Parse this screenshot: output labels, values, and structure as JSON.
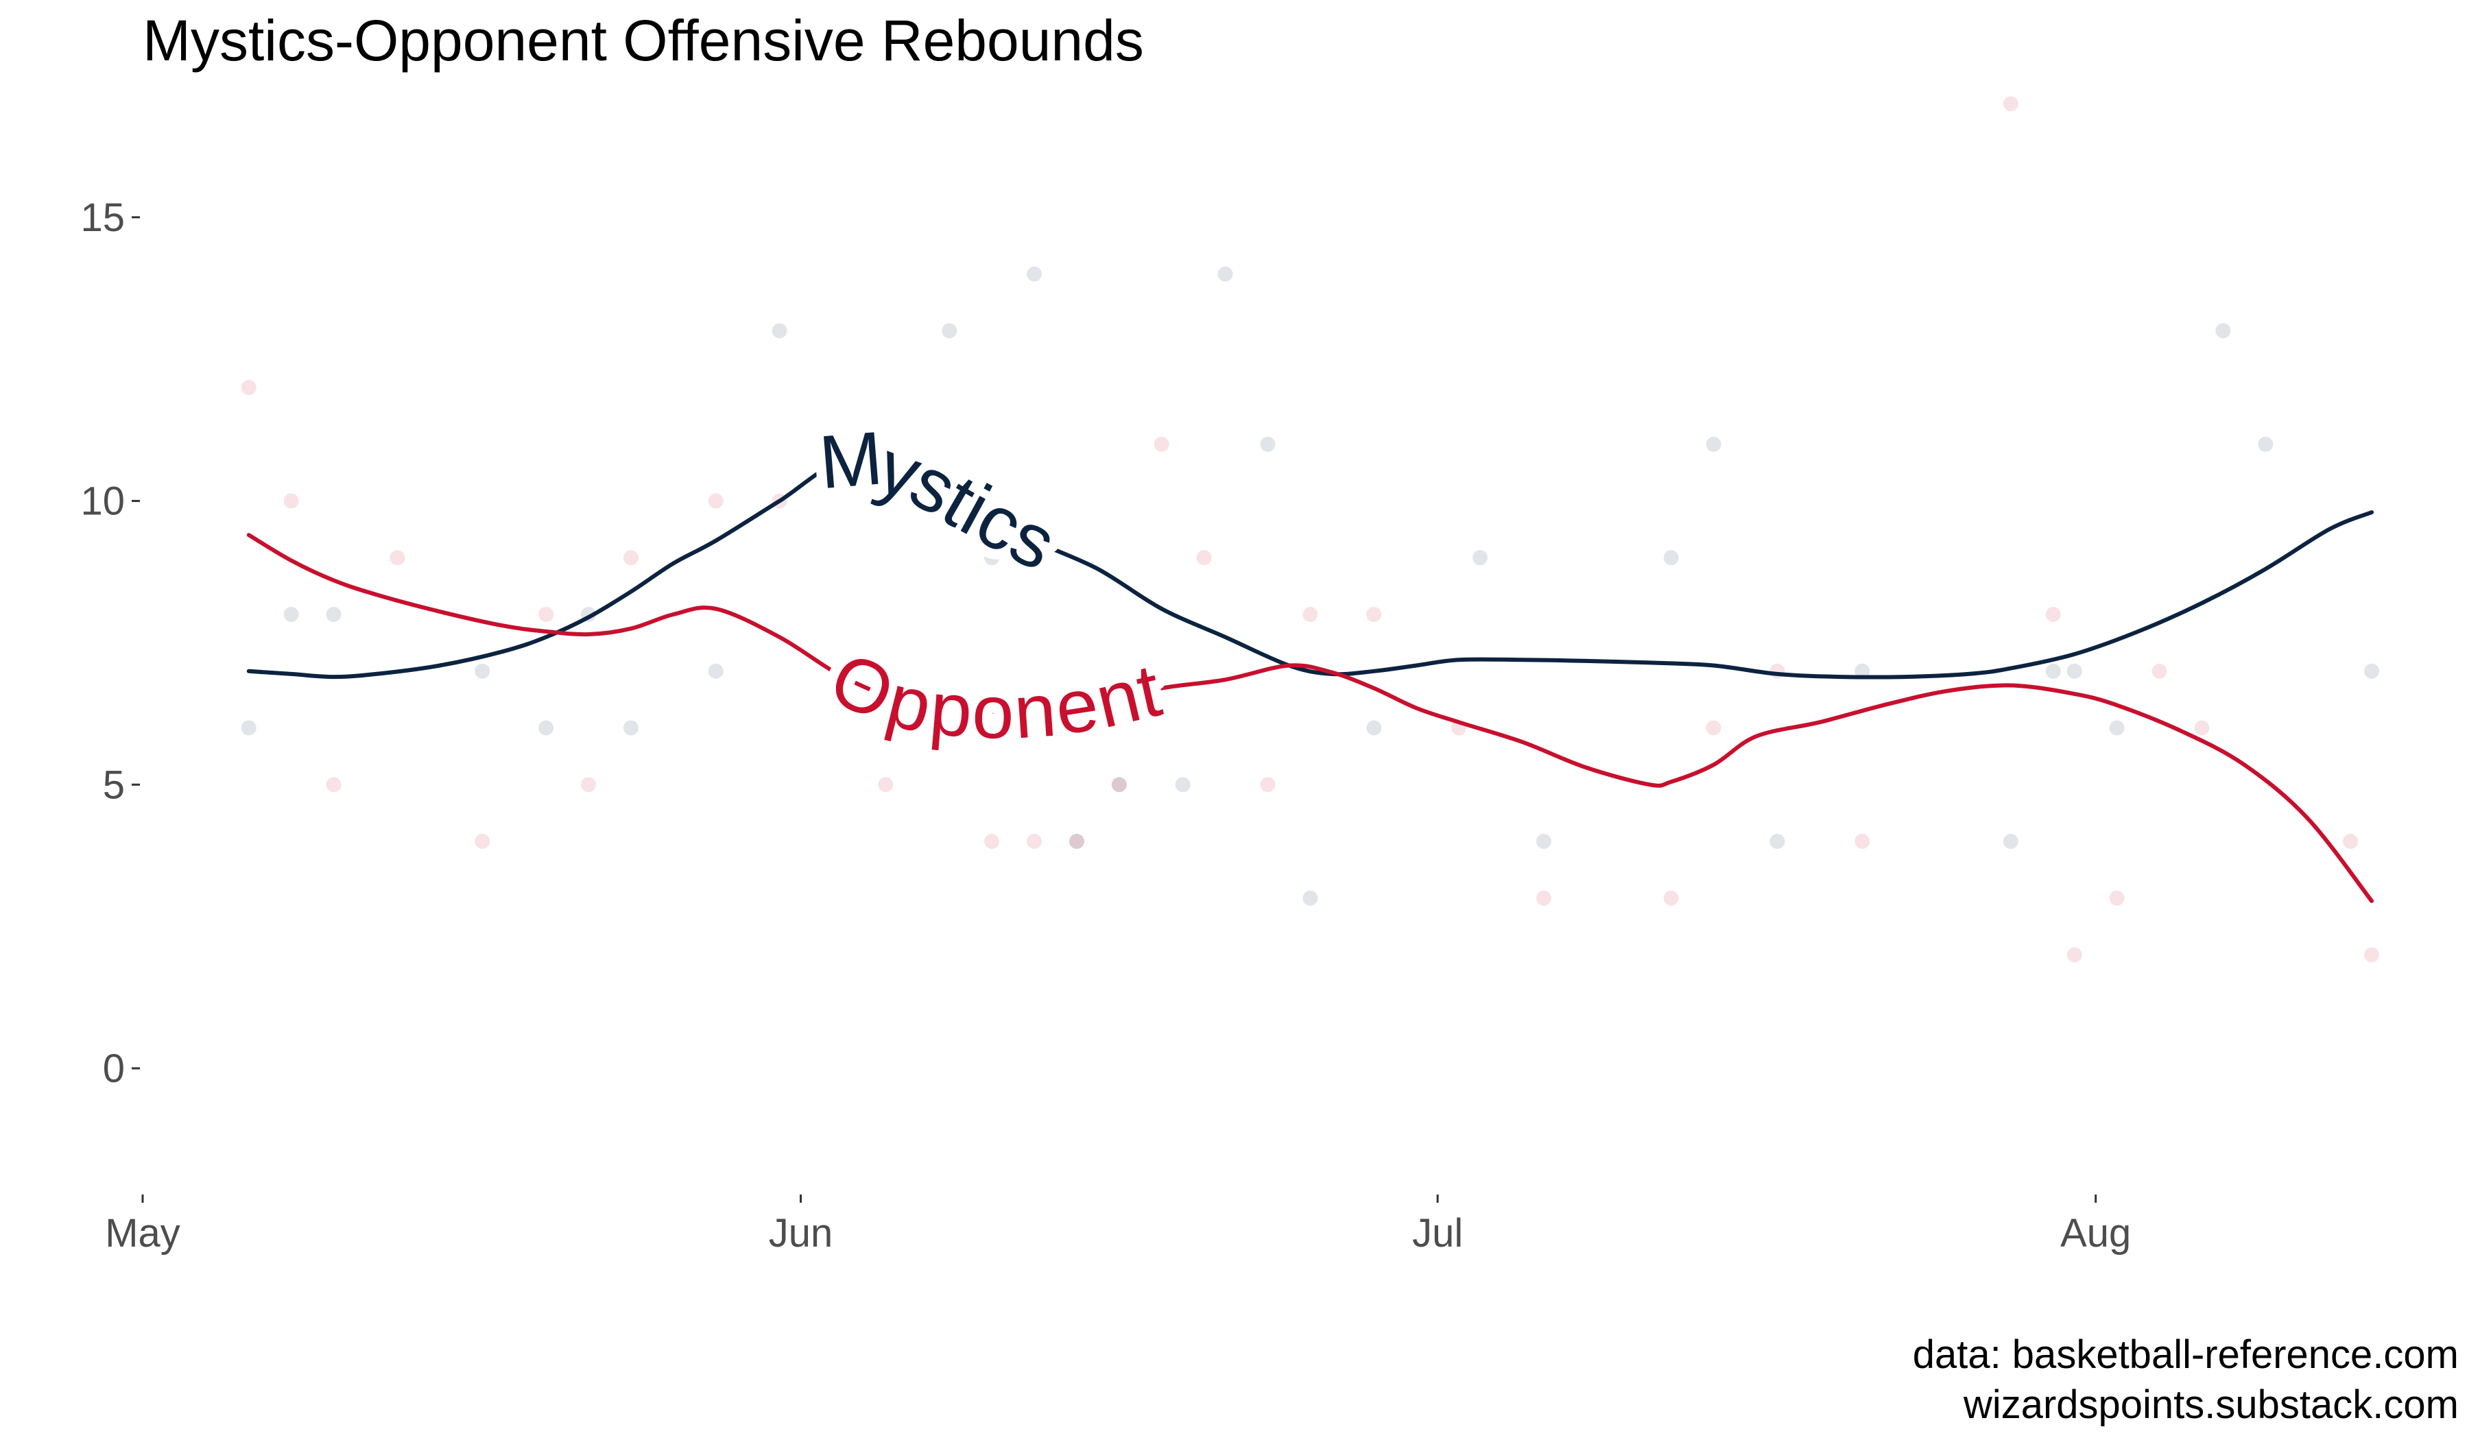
{
  "chart_data": {
    "type": "line",
    "title": "Mystics-Opponent Offensive Rebounds",
    "xlabel": "",
    "ylabel": "",
    "ylim": [
      -2.2,
      17.5
    ],
    "xlim_days": [
      0,
      107
    ],
    "grid": false,
    "legend": "direct labels on curves",
    "y_ticks": [
      0,
      5,
      10,
      15
    ],
    "y_tick_labels": [
      "0",
      "5",
      "10",
      "15"
    ],
    "x_ticks": [
      {
        "label": "May",
        "day": 0
      },
      {
        "label": "Jun",
        "day": 31
      },
      {
        "label": "Jul",
        "day": 61
      },
      {
        "label": "Aug",
        "day": 92
      }
    ],
    "series": [
      {
        "name": "Mystics",
        "color": "#0c2340",
        "label_text": "Mystics",
        "smooth": [
          [
            5,
            7.0
          ],
          [
            7,
            6.95
          ],
          [
            9,
            6.9
          ],
          [
            11,
            6.95
          ],
          [
            14,
            7.1
          ],
          [
            17,
            7.35
          ],
          [
            19,
            7.6
          ],
          [
            21,
            7.95
          ],
          [
            23,
            8.4
          ],
          [
            25,
            8.9
          ],
          [
            27,
            9.3
          ],
          [
            30,
            10.0
          ],
          [
            33,
            10.7
          ],
          [
            36,
            10.5
          ],
          [
            39,
            9.9
          ],
          [
            42,
            9.3
          ],
          [
            45,
            8.8
          ],
          [
            48,
            8.1
          ],
          [
            51,
            7.6
          ],
          [
            54,
            7.1
          ],
          [
            56,
            6.95
          ],
          [
            58,
            7.0
          ],
          [
            60,
            7.1
          ],
          [
            62,
            7.2
          ],
          [
            65,
            7.2
          ],
          [
            68,
            7.18
          ],
          [
            71,
            7.15
          ],
          [
            74,
            7.1
          ],
          [
            77,
            6.95
          ],
          [
            80,
            6.9
          ],
          [
            83,
            6.9
          ],
          [
            86,
            6.95
          ],
          [
            88,
            7.05
          ],
          [
            91,
            7.3
          ],
          [
            94,
            7.7
          ],
          [
            97,
            8.2
          ],
          [
            100,
            8.8
          ],
          [
            103,
            9.5
          ],
          [
            105,
            9.8
          ]
        ],
        "points": [
          [
            5,
            6
          ],
          [
            7,
            8
          ],
          [
            9,
            8
          ],
          [
            16,
            7
          ],
          [
            19,
            6
          ],
          [
            21,
            8
          ],
          [
            23,
            6
          ],
          [
            27,
            7
          ],
          [
            30,
            13
          ],
          [
            32,
            11
          ],
          [
            38,
            13
          ],
          [
            40,
            9
          ],
          [
            42,
            14
          ],
          [
            44,
            4
          ],
          [
            46,
            5
          ],
          [
            49,
            5
          ],
          [
            51,
            14
          ],
          [
            53,
            11
          ],
          [
            55,
            3
          ],
          [
            58,
            6
          ],
          [
            63,
            9
          ],
          [
            66,
            4
          ],
          [
            72,
            9
          ],
          [
            74,
            11
          ],
          [
            77,
            4
          ],
          [
            81,
            7
          ],
          [
            88,
            4
          ],
          [
            90,
            7
          ],
          [
            91,
            7
          ],
          [
            93,
            6
          ],
          [
            98,
            13
          ],
          [
            100,
            11
          ],
          [
            105,
            7
          ]
        ]
      },
      {
        "name": "Opponent",
        "color": "#c8102e",
        "label_text": "Opponent",
        "smooth": [
          [
            5,
            9.4
          ],
          [
            7,
            8.95
          ],
          [
            9,
            8.6
          ],
          [
            11,
            8.35
          ],
          [
            14,
            8.05
          ],
          [
            17,
            7.8
          ],
          [
            19,
            7.7
          ],
          [
            21,
            7.65
          ],
          [
            23,
            7.75
          ],
          [
            25,
            8.0
          ],
          [
            27,
            8.1
          ],
          [
            30,
            7.6
          ],
          [
            33,
            6.9
          ],
          [
            36,
            6.45
          ],
          [
            39,
            6.3
          ],
          [
            42,
            6.3
          ],
          [
            45,
            6.45
          ],
          [
            48,
            6.7
          ],
          [
            51,
            6.85
          ],
          [
            54,
            7.1
          ],
          [
            56,
            6.98
          ],
          [
            58,
            6.7
          ],
          [
            60,
            6.35
          ],
          [
            62,
            6.1
          ],
          [
            65,
            5.75
          ],
          [
            68,
            5.3
          ],
          [
            71,
            5.0
          ],
          [
            72,
            5.05
          ],
          [
            74,
            5.35
          ],
          [
            76,
            5.85
          ],
          [
            79,
            6.1
          ],
          [
            82,
            6.4
          ],
          [
            85,
            6.65
          ],
          [
            88,
            6.75
          ],
          [
            91,
            6.6
          ],
          [
            93,
            6.4
          ],
          [
            96,
            5.95
          ],
          [
            99,
            5.35
          ],
          [
            102,
            4.4
          ],
          [
            105,
            2.95
          ]
        ],
        "points": [
          [
            5,
            12
          ],
          [
            7,
            10
          ],
          [
            9,
            5
          ],
          [
            12,
            9
          ],
          [
            16,
            4
          ],
          [
            19,
            8
          ],
          [
            21,
            5
          ],
          [
            23,
            9
          ],
          [
            27,
            10
          ],
          [
            30,
            10
          ],
          [
            35,
            5
          ],
          [
            40,
            4
          ],
          [
            42,
            4
          ],
          [
            44,
            4
          ],
          [
            46,
            5
          ],
          [
            48,
            11
          ],
          [
            50,
            9
          ],
          [
            53,
            5
          ],
          [
            55,
            8
          ],
          [
            58,
            8
          ],
          [
            62,
            6
          ],
          [
            66,
            3
          ],
          [
            72,
            3
          ],
          [
            74,
            6
          ],
          [
            77,
            7
          ],
          [
            81,
            4
          ],
          [
            88,
            17
          ],
          [
            90,
            8
          ],
          [
            91,
            2
          ],
          [
            93,
            3
          ],
          [
            95,
            7
          ],
          [
            97,
            6
          ],
          [
            104,
            4
          ],
          [
            105,
            2
          ]
        ]
      }
    ],
    "caption": [
      "data: basketball-reference.com",
      "wizardspoints.substack.com"
    ]
  }
}
